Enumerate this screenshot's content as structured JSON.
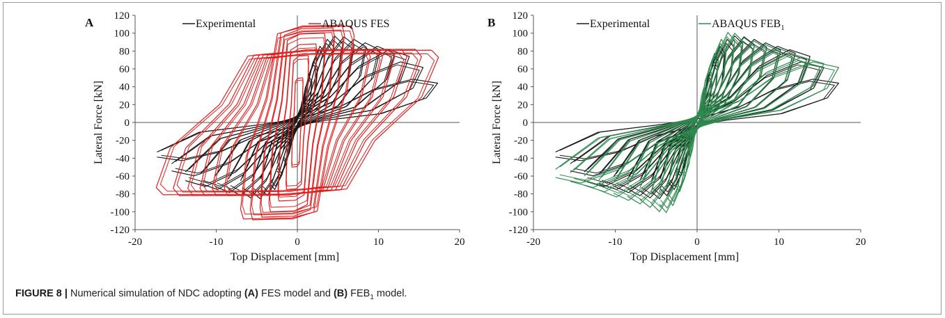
{
  "chart_data": [
    {
      "type": "line",
      "panel_label": "A",
      "xlabel": "Top Displacement [mm]",
      "ylabel": "Lateral Force [kN]",
      "xlim": [
        -20,
        20
      ],
      "ylim": [
        -120,
        120
      ],
      "xticks": [
        -20,
        -10,
        0,
        10,
        20
      ],
      "yticks": [
        -120,
        -100,
        -80,
        -60,
        -40,
        -20,
        0,
        20,
        40,
        60,
        80,
        100,
        120
      ],
      "grid": false,
      "legend_position": "top",
      "series": [
        {
          "name": "Experimental",
          "color": "#1a1a1a",
          "kind": "pinched",
          "cycles": [
            {
              "d": 1.0,
              "f": 30
            },
            {
              "d": 1.8,
              "f": 52
            },
            {
              "d": 2.5,
              "f": 70
            },
            {
              "d": 3.4,
              "f": 88
            },
            {
              "d": 4.5,
              "f": 96
            },
            {
              "d": 5.6,
              "f": 100
            },
            {
              "d": 7.0,
              "f": 99
            },
            {
              "d": 8.5,
              "f": 96
            },
            {
              "d": 10.2,
              "f": 92
            },
            {
              "d": 12.0,
              "f": 88
            },
            {
              "d": 13.8,
              "f": 84
            },
            {
              "d": 15.5,
              "f": 70
            },
            {
              "d": 17.3,
              "f": 50
            }
          ],
          "neg_scale": 0.88
        },
        {
          "name": "ABAQUS FES",
          "color": "#e0201f",
          "kind": "full",
          "cycles": [
            {
              "d": 0.7,
              "f": 50
            },
            {
              "d": 1.4,
              "f": 75
            },
            {
              "d": 2.4,
              "f": 88
            },
            {
              "d": 3.5,
              "f": 100
            },
            {
              "d": 4.6,
              "f": 106
            },
            {
              "d": 5.8,
              "f": 109
            },
            {
              "d": 7.0,
              "f": 108
            },
            {
              "d": 9.0,
              "f": 82
            },
            {
              "d": 10.5,
              "f": 82
            },
            {
              "d": 12.0,
              "f": 82
            },
            {
              "d": 13.5,
              "f": 82
            },
            {
              "d": 15.3,
              "f": 82
            },
            {
              "d": 17.4,
              "f": 81
            }
          ],
          "neg_scale": 1.0
        }
      ]
    },
    {
      "type": "line",
      "panel_label": "B",
      "xlabel": "Top Displacement [mm]",
      "ylabel": "Lateral Force [kN]",
      "xlim": [
        -20,
        20
      ],
      "ylim": [
        -120,
        120
      ],
      "xticks": [
        -20,
        -10,
        0,
        10,
        20
      ],
      "yticks": [
        -120,
        -100,
        -80,
        -60,
        -40,
        -20,
        0,
        20,
        40,
        60,
        80,
        100,
        120
      ],
      "grid": false,
      "legend_position": "top",
      "series": [
        {
          "name": "Experimental",
          "color": "#1a1a1a",
          "kind": "pinched",
          "cycles": [
            {
              "d": 1.0,
              "f": 30
            },
            {
              "d": 1.8,
              "f": 52
            },
            {
              "d": 2.5,
              "f": 70
            },
            {
              "d": 3.4,
              "f": 88
            },
            {
              "d": 4.5,
              "f": 96
            },
            {
              "d": 5.6,
              "f": 100
            },
            {
              "d": 7.0,
              "f": 99
            },
            {
              "d": 8.5,
              "f": 96
            },
            {
              "d": 10.2,
              "f": 92
            },
            {
              "d": 12.0,
              "f": 88
            },
            {
              "d": 13.8,
              "f": 84
            },
            {
              "d": 15.5,
              "f": 70
            },
            {
              "d": 17.3,
              "f": 50
            }
          ],
          "neg_scale": 0.88
        },
        {
          "name": "ABAQUS FEB",
          "name_subscript": "1",
          "color": "#2e8b4f",
          "kind": "pinched",
          "cycles": [
            {
              "d": 1.0,
              "f": 40
            },
            {
              "d": 1.8,
              "f": 62
            },
            {
              "d": 2.6,
              "f": 80
            },
            {
              "d": 3.6,
              "f": 96
            },
            {
              "d": 4.6,
              "f": 104
            },
            {
              "d": 5.6,
              "f": 103
            },
            {
              "d": 7.0,
              "f": 98
            },
            {
              "d": 8.5,
              "f": 94
            },
            {
              "d": 10.2,
              "f": 90
            },
            {
              "d": 12.0,
              "f": 86
            },
            {
              "d": 13.8,
              "f": 80
            },
            {
              "d": 15.5,
              "f": 75
            },
            {
              "d": 17.3,
              "f": 70
            }
          ],
          "neg_scale": 1.0
        }
      ]
    }
  ],
  "caption": {
    "figure_label": "FIGURE 8 |",
    "text_1": " Numerical simulation of NDC adopting ",
    "bold_a": "(A)",
    "text_2": " FES model and ",
    "bold_b": "(B)",
    "text_3": " FEB",
    "subscript": "1",
    "text_4": " model."
  }
}
